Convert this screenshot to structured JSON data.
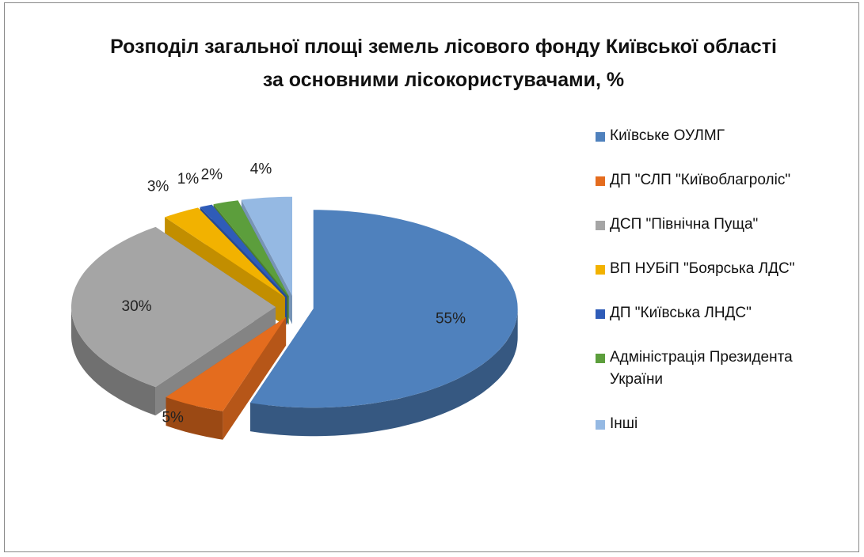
{
  "chart_data": {
    "type": "pie",
    "title": "Розподіл загальної площі земель лісового фонду Київської області за основними лісокористувачами, %",
    "categories": [
      "Київське ОУЛМГ",
      "ДП \"СЛП \"Київоблагроліс\"",
      "ДСП \"Північна Пуща\"",
      "ВП НУБіП \"Боярська ЛДС\"",
      "ДП \"Київська ЛНДС\"",
      "Адміністрація Президента України",
      "Інші"
    ],
    "values": [
      55,
      5,
      30,
      3,
      1,
      2,
      4
    ],
    "value_labels": [
      "55%",
      "5%",
      "30%",
      "3%",
      "1%",
      "2%",
      "4%"
    ],
    "colors": [
      "#4f81bd",
      "#e46c1e",
      "#a5a5a5",
      "#f2b200",
      "#2f5cb8",
      "#5c9e3c",
      "#95b9e3"
    ],
    "legend": "right"
  }
}
